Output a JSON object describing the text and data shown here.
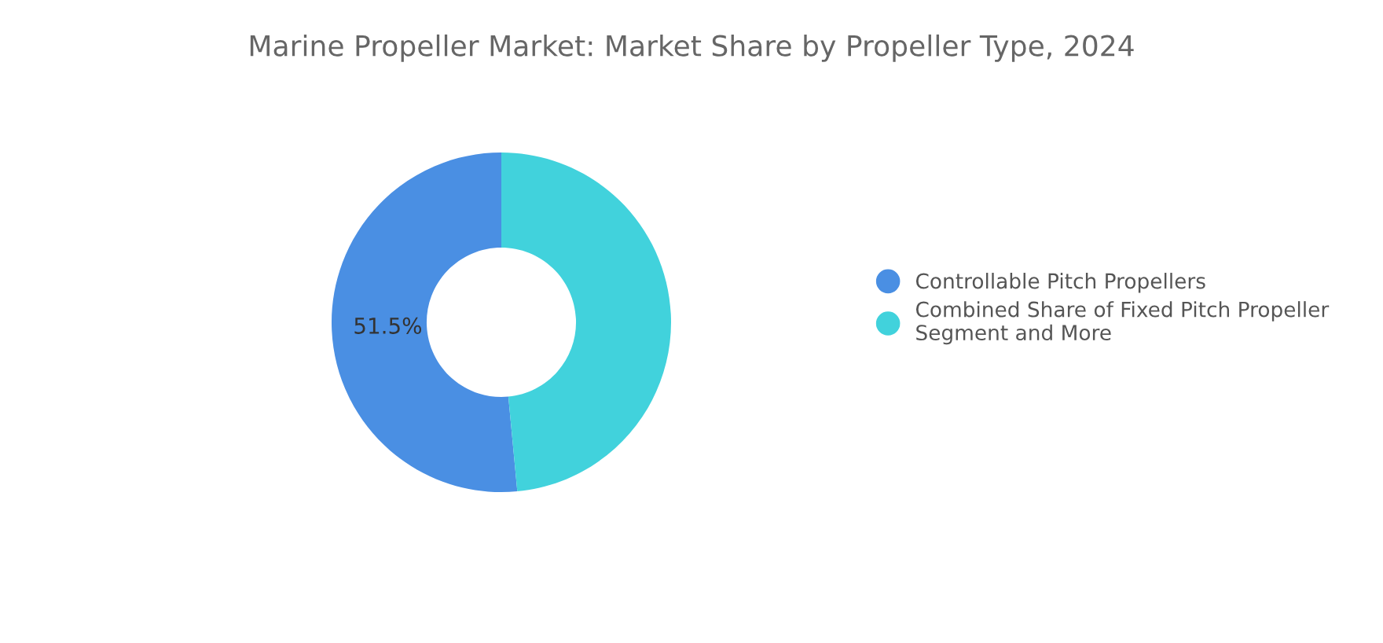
{
  "chart_data": {
    "type": "donut",
    "title": "Marine Propeller Market: Market Share by Propeller Type, 2024",
    "categories": [
      "Controllable Pitch Propellers",
      "Combined Share of Fixed Pitch Propeller\nSegment and More"
    ],
    "values": [
      51.5,
      48.5
    ],
    "colors": [
      "#4a8fe3",
      "#41d2dc"
    ],
    "value_labels": [
      "51.5%",
      null
    ],
    "legend": "right"
  }
}
